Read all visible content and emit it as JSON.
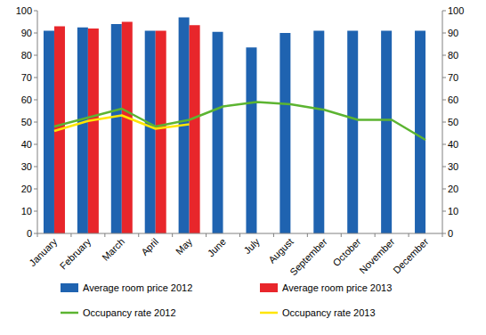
{
  "chart_data": {
    "type": "bar",
    "categories": [
      "January",
      "February",
      "March",
      "April",
      "May",
      "June",
      "July",
      "August",
      "September",
      "October",
      "November",
      "December"
    ],
    "series": [
      {
        "name": "Average room price 2012",
        "type": "bar",
        "color": "#1f63b0",
        "values": [
          91,
          92.5,
          94,
          91,
          97,
          90.5,
          83.5,
          90,
          91,
          91,
          91,
          91
        ]
      },
      {
        "name": "Average room price 2013",
        "type": "bar",
        "color": "#e8262b",
        "values": [
          93,
          92,
          95,
          91,
          93.5,
          null,
          null,
          null,
          null,
          null,
          null,
          null
        ]
      },
      {
        "name": "Occupancy rate 2012",
        "type": "line",
        "color": "#5cb431",
        "axis": "y2",
        "values": [
          48,
          52,
          56,
          48,
          51,
          57,
          59,
          58,
          55.5,
          51,
          51,
          42
        ]
      },
      {
        "name": "Occupancy rate 2013",
        "type": "line",
        "color": "#ffe500",
        "axis": "y2",
        "values": [
          46,
          50.5,
          53,
          47,
          49,
          null,
          null,
          null,
          null,
          null,
          null,
          null
        ]
      }
    ],
    "ylim": [
      0,
      100
    ],
    "yticks": [
      0,
      10,
      20,
      30,
      40,
      50,
      60,
      70,
      80,
      90,
      100
    ],
    "y2lim": [
      0,
      100
    ],
    "y2ticks": [
      0,
      10,
      20,
      30,
      40,
      50,
      60,
      70,
      80,
      90,
      100
    ],
    "grid": false,
    "legend": "bottom"
  }
}
